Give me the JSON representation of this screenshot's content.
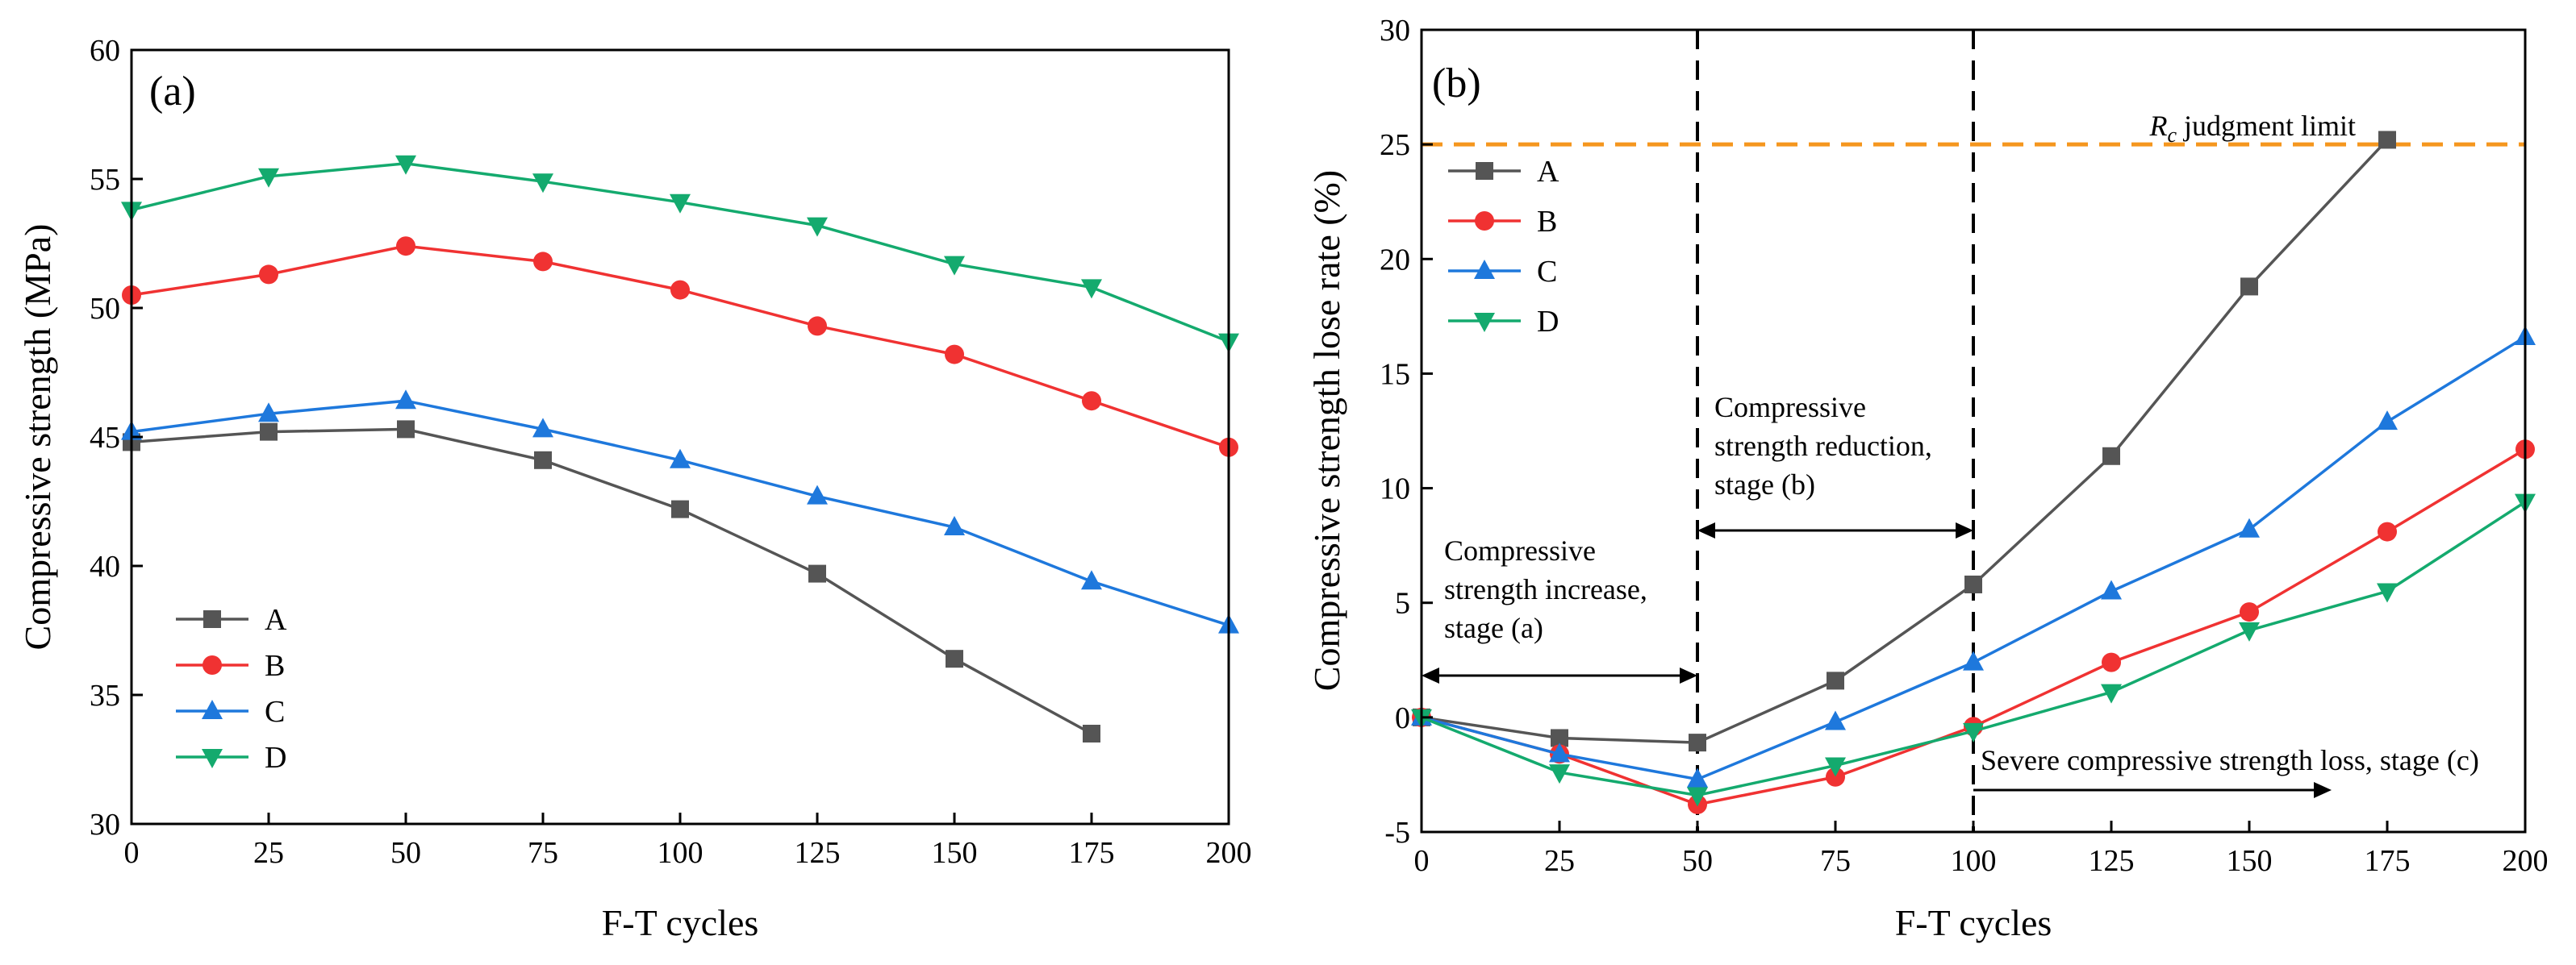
{
  "chart_data": [
    {
      "type": "line",
      "panel_label": "(a)",
      "xlabel": "F-T cycles",
      "ylabel": "Compressive strength (MPa)",
      "x": [
        0,
        25,
        50,
        75,
        100,
        125,
        150,
        175,
        200
      ],
      "xlim": [
        0,
        200
      ],
      "ylim": [
        30,
        60
      ],
      "xticks": [
        "0",
        "25",
        "50",
        "75",
        "100",
        "125",
        "150",
        "175",
        "200"
      ],
      "yticks": [
        "30",
        "35",
        "40",
        "45",
        "50",
        "55",
        "60"
      ],
      "legend_position": "lower-left",
      "series": [
        {
          "name": "A",
          "color": "#555555",
          "marker": "square",
          "values": [
            44.8,
            45.2,
            45.3,
            44.1,
            42.2,
            39.7,
            36.4,
            33.5,
            null
          ]
        },
        {
          "name": "B",
          "color": "#f03232",
          "marker": "circle",
          "values": [
            50.5,
            51.3,
            52.4,
            51.8,
            50.7,
            49.3,
            48.2,
            46.4,
            44.6
          ]
        },
        {
          "name": "C",
          "color": "#1e78dc",
          "marker": "triangle-up",
          "values": [
            45.2,
            45.9,
            46.4,
            45.3,
            44.1,
            42.7,
            41.5,
            39.4,
            37.7
          ]
        },
        {
          "name": "D",
          "color": "#14aa6e",
          "marker": "triangle-down",
          "values": [
            53.8,
            55.1,
            55.6,
            54.9,
            54.1,
            53.2,
            51.7,
            50.8,
            48.7
          ]
        }
      ]
    },
    {
      "type": "line",
      "panel_label": "(b)",
      "xlabel": "F-T cycles",
      "ylabel": "Compressive strength lose rate (%)",
      "x": [
        0,
        25,
        50,
        75,
        100,
        125,
        150,
        175,
        200
      ],
      "xlim": [
        0,
        200
      ],
      "ylim": [
        -5,
        30
      ],
      "xticks": [
        "0",
        "25",
        "50",
        "75",
        "100",
        "125",
        "150",
        "175",
        "200"
      ],
      "yticks": [
        "-5",
        "0",
        "5",
        "10",
        "15",
        "20",
        "25",
        "30"
      ],
      "legend_position": "upper-left",
      "limit_line": {
        "y": 25,
        "color": "#f5961e",
        "label_italic": "R",
        "label_sub": "c",
        "label_rest": " judgment limit"
      },
      "stage_lines_x": [
        50,
        100
      ],
      "annotations": {
        "stage_a": [
          "Compressive",
          "strength increase,",
          "stage (a)"
        ],
        "stage_b": [
          "Compressive",
          "strength reduction,",
          "stage (b)"
        ],
        "stage_c": "Severe compressive strength loss, stage (c)"
      },
      "series": [
        {
          "name": "A",
          "color": "#555555",
          "marker": "square",
          "values": [
            0,
            -0.9,
            -1.1,
            1.6,
            5.8,
            11.4,
            18.8,
            25.2,
            null
          ]
        },
        {
          "name": "B",
          "color": "#f03232",
          "marker": "circle",
          "values": [
            0,
            -1.6,
            -3.8,
            -2.6,
            -0.4,
            2.4,
            4.6,
            8.1,
            11.7
          ]
        },
        {
          "name": "C",
          "color": "#1e78dc",
          "marker": "triangle-up",
          "values": [
            0,
            -1.6,
            -2.7,
            -0.2,
            2.4,
            5.5,
            8.2,
            12.9,
            16.6
          ]
        },
        {
          "name": "D",
          "color": "#14aa6e",
          "marker": "triangle-down",
          "values": [
            0,
            -2.4,
            -3.4,
            -2.1,
            -0.6,
            1.1,
            3.8,
            5.5,
            9.4
          ]
        }
      ]
    }
  ]
}
